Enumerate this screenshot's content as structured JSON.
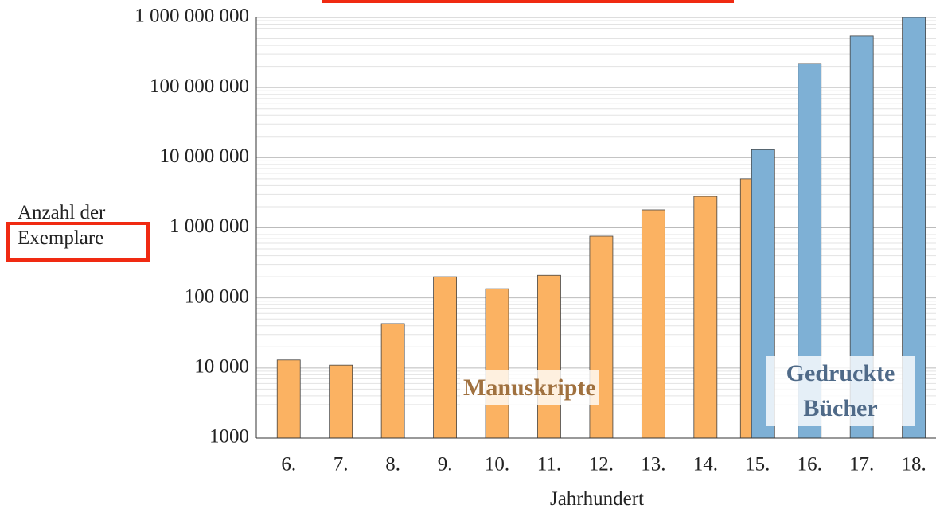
{
  "chart_data": {
    "type": "bar",
    "x_label": "Jahrhundert",
    "y_label": "Anzahl der Exemplare",
    "categories": [
      "6.",
      "7.",
      "8.",
      "9.",
      "10.",
      "11.",
      "12.",
      "13.",
      "14.",
      "15.",
      "16.",
      "17.",
      "18."
    ],
    "series": [
      {
        "name": "Manuskripte",
        "color": "#fbb262",
        "label_color": "#a0713f",
        "values": [
          13000,
          11000,
          43000,
          200000,
          135000,
          210000,
          760000,
          1800000,
          2800000,
          5000000,
          null,
          null,
          null
        ]
      },
      {
        "name": "Gedruckte Bücher",
        "color": "#7eb0d5",
        "label_color": "#4f6a88",
        "values": [
          null,
          null,
          null,
          null,
          null,
          null,
          null,
          null,
          null,
          13000000,
          220000000,
          550000000,
          1000000000
        ]
      }
    ],
    "log_y": true,
    "ylim": [
      1000,
      1000000000
    ],
    "yticks": [
      1000,
      {
        "value": 10000,
        "label": "10 000"
      },
      {
        "value": 100000,
        "label": "100 000"
      },
      {
        "value": 1000000,
        "label": "1 000 000"
      },
      {
        "value": 10000000,
        "label": "10 000 000"
      },
      {
        "value": 100000000,
        "label": "100 000 000"
      },
      {
        "value": 1000000000,
        "label": "1 000 000 000"
      }
    ],
    "grid": true
  }
}
